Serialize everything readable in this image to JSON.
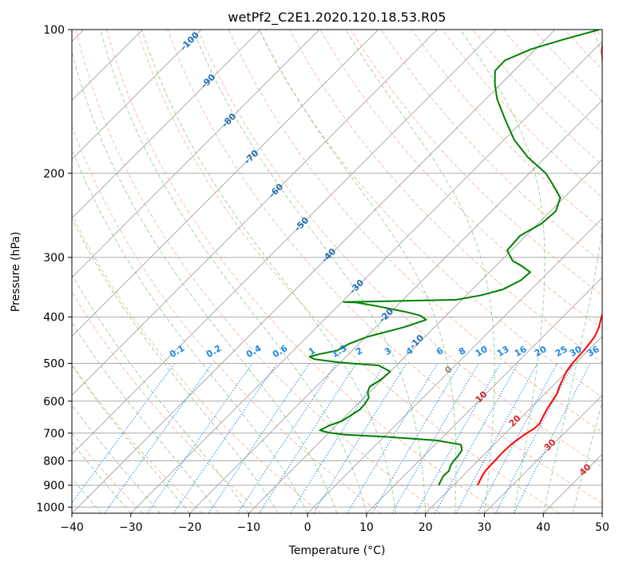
{
  "chart_data": {
    "type": "skew-t log-p",
    "title": "wetPf2_C2E1.2020.120.18.53.R05",
    "xlabel": "Temperature (°C)",
    "ylabel": "Pressure (hPa)",
    "xlim": [
      -40,
      50
    ],
    "ylim_hpa": [
      1030,
      100
    ],
    "x_ticks": [
      -40,
      -30,
      -20,
      -10,
      0,
      10,
      20,
      30,
      40,
      50
    ],
    "y_ticks": [
      100,
      200,
      300,
      400,
      500,
      600,
      700,
      800,
      900,
      1000
    ],
    "grid": true,
    "colors": {
      "temperature": "#ff0000",
      "dewpoint": "#008000",
      "isotherms": "#999999",
      "dry_adiabats": "#f4a582",
      "moist_adiabats": "#7fbf7b",
      "mixing_ratio": "#1e88e5",
      "dry_label": "#d62728",
      "moist_label": "#1f6fb4",
      "zero_label": "#888888"
    },
    "series": [
      {
        "name": "",
        "kind": "temperature",
        "points": [
          [
            900,
            24.1
          ],
          [
            880,
            23.7
          ],
          [
            860,
            23.3
          ],
          [
            840,
            23.0
          ],
          [
            820,
            22.9
          ],
          [
            800,
            22.9
          ],
          [
            780,
            22.8
          ],
          [
            760,
            22.8
          ],
          [
            740,
            22.9
          ],
          [
            720,
            23.2
          ],
          [
            700,
            23.6
          ],
          [
            685,
            24.1
          ],
          [
            670,
            24.2
          ],
          [
            655,
            23.8
          ],
          [
            640,
            23.4
          ],
          [
            620,
            22.9
          ],
          [
            600,
            22.5
          ],
          [
            580,
            22.1
          ],
          [
            560,
            21.3
          ],
          [
            540,
            20.6
          ],
          [
            520,
            19.9
          ],
          [
            500,
            19.5
          ],
          [
            470,
            19.3
          ],
          [
            440,
            18.8
          ],
          [
            420,
            17.9
          ],
          [
            400,
            16.6
          ],
          [
            380,
            15.5
          ],
          [
            360,
            14.0
          ],
          [
            340,
            11.4
          ],
          [
            320,
            9.4
          ],
          [
            300,
            7.6
          ],
          [
            280,
            5.1
          ],
          [
            260,
            2.2
          ],
          [
            240,
            -0.4
          ],
          [
            220,
            -3.0
          ],
          [
            200,
            -6.6
          ],
          [
            180,
            -10.6
          ],
          [
            160,
            -14.8
          ],
          [
            140,
            -19.5
          ],
          [
            120,
            -25.5
          ],
          [
            110,
            -28.7
          ],
          [
            100,
            -31.7
          ]
        ]
      },
      {
        "name": "",
        "kind": "dewpoint",
        "points": [
          [
            900,
            17.5
          ],
          [
            880,
            17.1
          ],
          [
            860,
            16.7
          ],
          [
            840,
            16.8
          ],
          [
            820,
            16.2
          ],
          [
            800,
            15.9
          ],
          [
            780,
            15.8
          ],
          [
            760,
            15.5
          ],
          [
            740,
            14.4
          ],
          [
            725,
            9.5
          ],
          [
            712,
            0.0
          ],
          [
            705,
            -7.0
          ],
          [
            698,
            -10.1
          ],
          [
            690,
            -12.0
          ],
          [
            675,
            -11.2
          ],
          [
            660,
            -9.8
          ],
          [
            640,
            -9.2
          ],
          [
            625,
            -8.7
          ],
          [
            610,
            -8.8
          ],
          [
            590,
            -9.2
          ],
          [
            575,
            -10.3
          ],
          [
            560,
            -10.9
          ],
          [
            540,
            -10.2
          ],
          [
            520,
            -10.0
          ],
          [
            505,
            -13.0
          ],
          [
            498,
            -20.0
          ],
          [
            490,
            -25.0
          ],
          [
            484,
            -26.2
          ],
          [
            478,
            -24.9
          ],
          [
            470,
            -22.6
          ],
          [
            455,
            -21.7
          ],
          [
            440,
            -19.8
          ],
          [
            420,
            -15.2
          ],
          [
            405,
            -12.7
          ],
          [
            397,
            -14.4
          ],
          [
            390,
            -17.5
          ],
          [
            380,
            -23.0
          ],
          [
            373,
            -27.3
          ],
          [
            372,
            -29.7
          ],
          [
            371,
            -24.5
          ],
          [
            368,
            -11.0
          ],
          [
            360,
            -7.5
          ],
          [
            350,
            -4.8
          ],
          [
            335,
            -3.3
          ],
          [
            322,
            -3.1
          ],
          [
            313,
            -5.5
          ],
          [
            305,
            -8.0
          ],
          [
            290,
            -10.7
          ],
          [
            270,
            -11.0
          ],
          [
            255,
            -9.4
          ],
          [
            240,
            -9.1
          ],
          [
            225,
            -10.6
          ],
          [
            210,
            -14.4
          ],
          [
            200,
            -17.2
          ],
          [
            185,
            -23.0
          ],
          [
            170,
            -28.3
          ],
          [
            155,
            -33.0
          ],
          [
            140,
            -38.0
          ],
          [
            130,
            -41.0
          ],
          [
            122,
            -43.2
          ],
          [
            116,
            -43.3
          ],
          [
            110,
            -40.8
          ],
          [
            105,
            -37.0
          ],
          [
            100,
            -32.5
          ]
        ]
      }
    ],
    "dry_adiabat_labels": [
      "10",
      "20",
      "30",
      "40"
    ],
    "moist_adiabat_labels": [
      "-100",
      "-90",
      "-80",
      "-70",
      "-60",
      "-50",
      "-40",
      "-30",
      "-20",
      "-10",
      "0"
    ],
    "mixing_ratio_labels": [
      "0.1",
      "0.2",
      "0.4",
      "0.6",
      "1",
      "1.5",
      "2",
      "3",
      "4",
      "6",
      "8",
      "10",
      "13",
      "16",
      "20",
      "25",
      "30",
      "36"
    ]
  }
}
